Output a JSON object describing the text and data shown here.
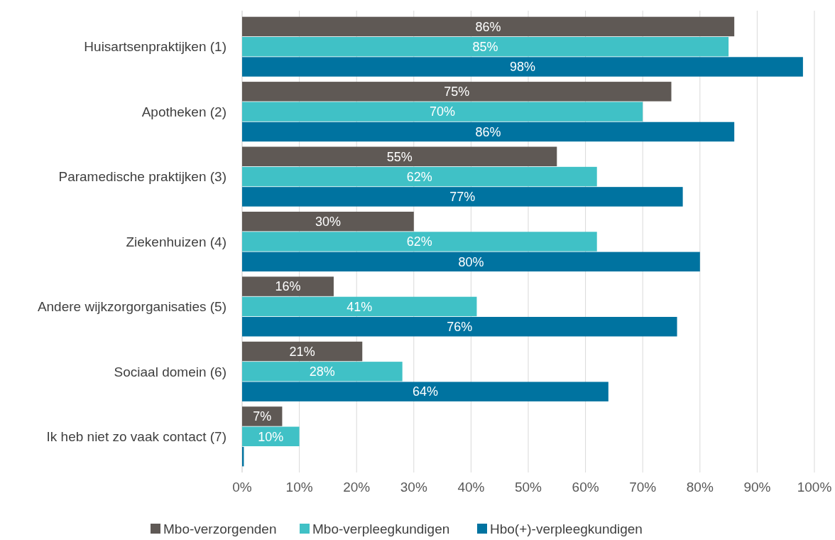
{
  "chart_data": {
    "type": "bar",
    "orientation": "horizontal",
    "categories": [
      "Huisartsenpraktijken (1)",
      "Apotheken (2)",
      "Paramedische praktijken (3)",
      "Ziekenhuizen (4)",
      "Andere wijkzorgorganisaties (5)",
      "Sociaal domein (6)",
      "Ik heb niet zo vaak contact (7)"
    ],
    "series": [
      {
        "name": "Mbo-verzorgenden",
        "color": "#5f5955",
        "values": [
          86,
          75,
          55,
          30,
          16,
          21,
          7
        ],
        "value_labels": [
          "86%",
          "75%",
          "55%",
          "30%",
          "16%",
          "21%",
          "7%"
        ]
      },
      {
        "name": "Mbo-verpleegkundigen",
        "color": "#40c1c6",
        "values": [
          85,
          70,
          62,
          62,
          41,
          28,
          10
        ],
        "value_labels": [
          "85%",
          "70%",
          "62%",
          "62%",
          "41%",
          "28%",
          "10%"
        ]
      },
      {
        "name": "Hbo(+)-verpleegkundigen",
        "color": "#0073a0",
        "values": [
          98,
          86,
          77,
          80,
          76,
          64,
          0.3
        ],
        "value_labels": [
          "98%",
          "86%",
          "77%",
          "80%",
          "76%",
          "64%",
          null
        ]
      }
    ],
    "xlim": [
      0,
      100
    ],
    "xticks": [
      {
        "value": 0,
        "label": "0%"
      },
      {
        "value": 10,
        "label": "10%"
      },
      {
        "value": 20,
        "label": "20%"
      },
      {
        "value": 30,
        "label": "30%"
      },
      {
        "value": 40,
        "label": "40%"
      },
      {
        "value": 50,
        "label": "50%"
      },
      {
        "value": 60,
        "label": "60%"
      },
      {
        "value": 70,
        "label": "70%"
      },
      {
        "value": 80,
        "label": "80%"
      },
      {
        "value": 90,
        "label": "90%"
      },
      {
        "value": 100,
        "label": "100%"
      }
    ],
    "grid": "x",
    "legend": "bottom"
  }
}
